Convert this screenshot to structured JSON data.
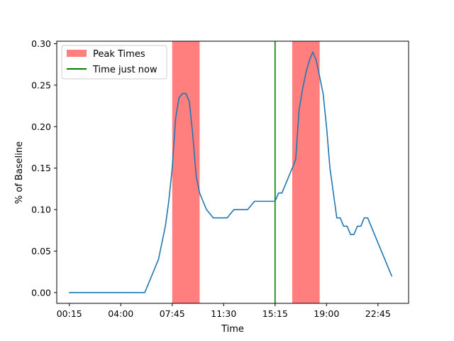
{
  "chart_data": {
    "type": "line",
    "title": "",
    "xlabel": "Time",
    "ylabel": "% of Baseline",
    "x_unit": "time of day (HH:MM)",
    "xlim": [
      "-00:40",
      "24:59"
    ],
    "ylim": [
      -0.013,
      0.303
    ],
    "x_ticks": [
      "00:15",
      "04:00",
      "07:45",
      "11:30",
      "15:15",
      "19:00",
      "22:45"
    ],
    "y_ticks": [
      0.0,
      0.05,
      0.1,
      0.15,
      0.2,
      0.25,
      0.3
    ],
    "y_tick_labels": [
      "0.00",
      "0.05",
      "0.10",
      "0.15",
      "0.20",
      "0.25",
      "0.30"
    ],
    "grid": false,
    "legend_position": "top-left",
    "legend": {
      "peak_label": "Peak Times",
      "now_label": "Time just now"
    },
    "colors": {
      "line": "#1f77b4",
      "peak_fill": "#ff0000",
      "now_line": "#008000"
    },
    "peak_bands": [
      {
        "start": "07:45",
        "end": "09:45"
      },
      {
        "start": "16:30",
        "end": "18:30"
      }
    ],
    "now_time": "15:15",
    "series": [
      {
        "x": [
          "00:15",
          "00:45",
          "01:15",
          "01:45",
          "02:15",
          "02:45",
          "03:15",
          "03:45",
          "04:15",
          "04:45",
          "05:15",
          "05:45",
          "06:15",
          "06:45",
          "07:15",
          "07:30",
          "07:45",
          "08:00",
          "08:15",
          "08:30",
          "08:45",
          "09:00",
          "09:15",
          "09:30",
          "09:45",
          "10:00",
          "10:15",
          "10:45",
          "11:15",
          "11:45",
          "12:15",
          "12:45",
          "13:15",
          "13:45",
          "14:15",
          "14:45",
          "15:15",
          "15:30",
          "15:45",
          "16:15",
          "16:30",
          "16:45",
          "17:00",
          "17:15",
          "17:30",
          "17:45",
          "18:00",
          "18:15",
          "18:30",
          "18:45",
          "19:00",
          "19:15",
          "19:30",
          "19:45",
          "20:00",
          "20:15",
          "20:30",
          "20:45",
          "21:00",
          "21:15",
          "21:30",
          "21:45",
          "22:00",
          "22:15",
          "22:30",
          "22:45",
          "23:15",
          "23:45"
        ],
        "values": [
          0,
          0,
          0,
          0,
          0,
          0,
          0,
          0,
          0,
          0,
          0,
          0,
          0.02,
          0.04,
          0.08,
          0.11,
          0.15,
          0.21,
          0.235,
          0.24,
          0.24,
          0.23,
          0.19,
          0.14,
          0.12,
          0.11,
          0.1,
          0.09,
          0.09,
          0.09,
          0.1,
          0.1,
          0.1,
          0.11,
          0.11,
          0.11,
          0.11,
          0.12,
          0.12,
          0.14,
          0.15,
          0.16,
          0.22,
          0.245,
          0.265,
          0.28,
          0.29,
          0.28,
          0.26,
          0.24,
          0.2,
          0.15,
          0.12,
          0.09,
          0.09,
          0.08,
          0.08,
          0.07,
          0.07,
          0.08,
          0.08,
          0.09,
          0.09,
          0.08,
          0.07,
          0.06,
          0.04,
          0.02
        ]
      }
    ]
  }
}
